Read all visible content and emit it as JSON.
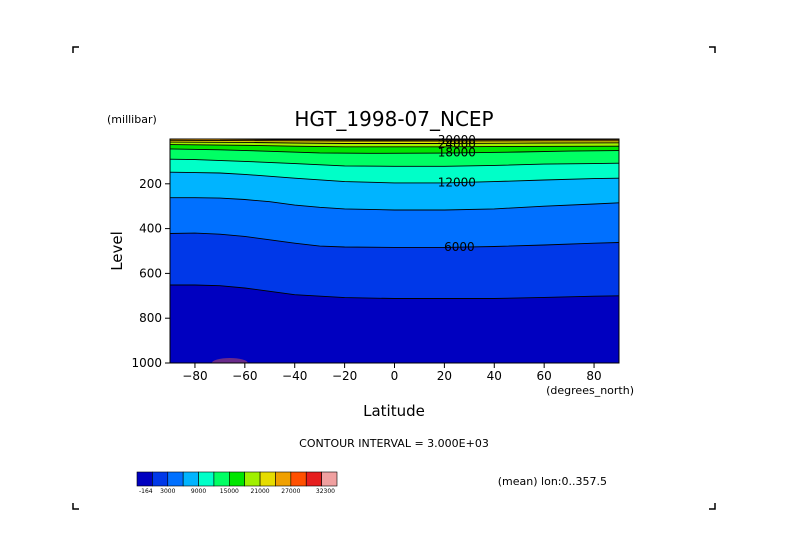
{
  "chart_data": {
    "type": "contour",
    "title": "HGT_1998-07_NCEP",
    "xlabel": "Latitude",
    "ylabel": "Level",
    "x_unit": "(degrees_north)",
    "y_unit": "(millibar)",
    "xlim": [
      -90,
      90
    ],
    "ylim": [
      1000,
      0
    ],
    "x_ticks": [
      -80,
      -60,
      -40,
      -20,
      0,
      20,
      40,
      60,
      80
    ],
    "y_ticks": [
      200,
      400,
      600,
      800,
      1000
    ],
    "contour_interval_text": "CONTOUR INTERVAL = 3.000E+03",
    "mean_text": "(mean) lon:0..357.5",
    "contour_labels": [
      "30000",
      "24000",
      "18000",
      "12000",
      "6000"
    ],
    "contour_label_positions": [
      {
        "text": "30000",
        "x": 25,
        "y": 4
      },
      {
        "text": "24000",
        "x": 25,
        "y": 22
      },
      {
        "text": "18000",
        "x": 25,
        "y": 60
      },
      {
        "text": "12000",
        "x": 25,
        "y": 195
      },
      {
        "text": "6000",
        "x": 26,
        "y": 482
      }
    ],
    "contour_values": [
      3000,
      6000,
      9000,
      12000,
      15000,
      18000,
      21000,
      24000,
      27000,
      30000
    ],
    "contour_lines": [
      {
        "value": 3000,
        "points": [
          [
            -90,
            652
          ],
          [
            -80,
            652
          ],
          [
            -70,
            655
          ],
          [
            -60,
            665
          ],
          [
            -50,
            680
          ],
          [
            -40,
            695
          ],
          [
            -20,
            708
          ],
          [
            0,
            712
          ],
          [
            20,
            712
          ],
          [
            40,
            712
          ],
          [
            60,
            707
          ],
          [
            80,
            702
          ],
          [
            90,
            700
          ]
        ]
      },
      {
        "value": 6000,
        "points": [
          [
            -90,
            422
          ],
          [
            -80,
            420
          ],
          [
            -70,
            425
          ],
          [
            -60,
            435
          ],
          [
            -50,
            450
          ],
          [
            -40,
            465
          ],
          [
            -30,
            478
          ],
          [
            -20,
            482
          ],
          [
            0,
            484
          ],
          [
            20,
            484
          ],
          [
            40,
            480
          ],
          [
            60,
            473
          ],
          [
            80,
            465
          ],
          [
            90,
            462
          ]
        ]
      },
      {
        "value": 9000,
        "points": [
          [
            -90,
            262
          ],
          [
            -80,
            262
          ],
          [
            -70,
            264
          ],
          [
            -60,
            270
          ],
          [
            -50,
            280
          ],
          [
            -40,
            295
          ],
          [
            -30,
            305
          ],
          [
            -20,
            312
          ],
          [
            0,
            317
          ],
          [
            20,
            317
          ],
          [
            40,
            312
          ],
          [
            60,
            300
          ],
          [
            80,
            290
          ],
          [
            90,
            285
          ]
        ]
      },
      {
        "value": 12000,
        "points": [
          [
            -90,
            148
          ],
          [
            -80,
            150
          ],
          [
            -70,
            152
          ],
          [
            -60,
            158
          ],
          [
            -40,
            175
          ],
          [
            -20,
            190
          ],
          [
            0,
            196
          ],
          [
            20,
            196
          ],
          [
            40,
            190
          ],
          [
            60,
            183
          ],
          [
            80,
            177
          ],
          [
            90,
            175
          ]
        ]
      },
      {
        "value": 15000,
        "points": [
          [
            -90,
            90
          ],
          [
            -80,
            92
          ],
          [
            -60,
            100
          ],
          [
            -40,
            110
          ],
          [
            -20,
            120
          ],
          [
            0,
            122
          ],
          [
            20,
            122
          ],
          [
            40,
            118
          ],
          [
            60,
            112
          ],
          [
            80,
            110
          ],
          [
            90,
            108
          ]
        ]
      },
      {
        "value": 18000,
        "points": [
          [
            -90,
            44
          ],
          [
            -70,
            48
          ],
          [
            -50,
            55
          ],
          [
            -30,
            62
          ],
          [
            -10,
            64
          ],
          [
            20,
            63
          ],
          [
            50,
            58
          ],
          [
            70,
            54
          ],
          [
            90,
            52
          ]
        ]
      },
      {
        "value": 21000,
        "points": [
          [
            -90,
            25
          ],
          [
            -60,
            28
          ],
          [
            -40,
            32
          ],
          [
            -20,
            35
          ],
          [
            20,
            35
          ],
          [
            50,
            33
          ],
          [
            90,
            32
          ]
        ]
      },
      {
        "value": 24000,
        "points": [
          [
            -90,
            14
          ],
          [
            -60,
            15
          ],
          [
            -40,
            18
          ],
          [
            -20,
            20
          ],
          [
            20,
            20
          ],
          [
            60,
            18
          ],
          [
            90,
            17
          ]
        ]
      },
      {
        "value": 27000,
        "points": [
          [
            -90,
            6
          ],
          [
            -40,
            8
          ],
          [
            -20,
            9
          ],
          [
            20,
            9
          ],
          [
            60,
            8
          ],
          [
            90,
            8
          ]
        ]
      },
      {
        "value": 30000,
        "points": [
          [
            -70,
            1
          ],
          [
            -40,
            3
          ],
          [
            0,
            4
          ],
          [
            40,
            3
          ],
          [
            90,
            2
          ]
        ]
      }
    ],
    "colorbar": {
      "labels": [
        "-164",
        "3000",
        "9000",
        "15000",
        "21000",
        "27000",
        "32300"
      ],
      "colors": [
        "#0000c0",
        "#0038e8",
        "#0070ff",
        "#00b4ff",
        "#00ffc8",
        "#00ff64",
        "#00e600",
        "#a0f000",
        "#e6dc00",
        "#f0a000",
        "#ff5000",
        "#e61e1e",
        "#f0a0a0"
      ]
    }
  }
}
